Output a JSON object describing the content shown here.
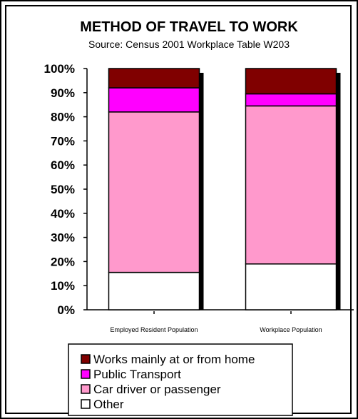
{
  "chart_data": {
    "type": "bar",
    "stacked": true,
    "percent": true,
    "title": "METHOD OF TRAVEL TO WORK",
    "subtitle": "Source: Census 2001 Workplace Table W203",
    "categories": [
      "Employed Resident Population",
      "Workplace Population"
    ],
    "series": [
      {
        "name": "Other",
        "values": [
          15.5,
          19
        ],
        "color": "#ffffff"
      },
      {
        "name": "Car driver or passenger",
        "values": [
          66.5,
          65.5
        ],
        "color": "#ff99cc"
      },
      {
        "name": "Public Transport",
        "values": [
          10,
          5
        ],
        "color": "#ff00ff"
      },
      {
        "name": "Works mainly at or from home",
        "values": [
          8,
          10.5
        ],
        "color": "#800000"
      }
    ],
    "y_ticks": [
      "0%",
      "10%",
      "20%",
      "30%",
      "40%",
      "50%",
      "60%",
      "70%",
      "80%",
      "90%",
      "100%"
    ],
    "ylim": [
      0,
      100
    ],
    "legend": {
      "position": "bottom",
      "entries": [
        "Works mainly at or from home",
        "Public Transport",
        "Car driver or passenger",
        "Other"
      ]
    },
    "grid": false
  }
}
